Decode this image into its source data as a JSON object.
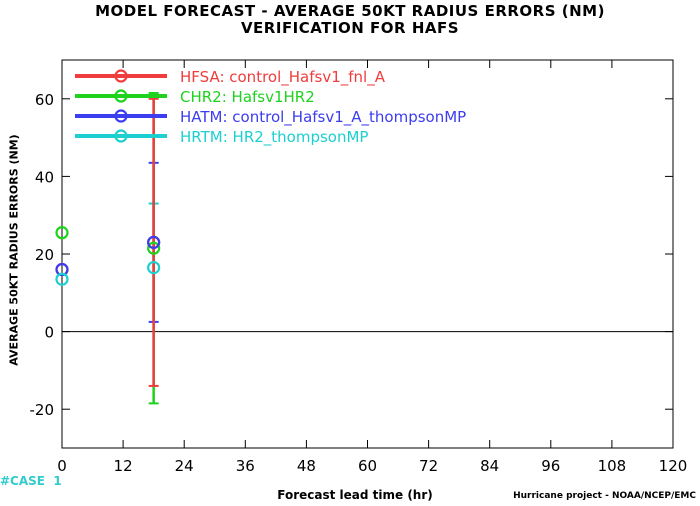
{
  "title_line1": "MODEL FORECAST - AVERAGE 50KT RADIUS ERRORS (NM)",
  "title_line2": "VERIFICATION FOR HAFS",
  "case_label": "#CASE",
  "case_count": "1",
  "credit": "Hurricane project - NOAA/NCEP/EMC",
  "colors": {
    "case": "#33cccc",
    "zero_line": "#000000"
  },
  "chart_data": {
    "type": "line",
    "title": "MODEL FORECAST - AVERAGE 50KT RADIUS ERRORS (NM)",
    "subtitle": "VERIFICATION FOR HAFS",
    "xlabel": "Forecast lead time (hr)",
    "ylabel": "AVERAGE 50KT RADIUS ERRORS (NM)",
    "xlim": [
      0,
      120
    ],
    "ylim": [
      -30,
      70
    ],
    "xticks": [
      0,
      12,
      24,
      36,
      48,
      60,
      72,
      84,
      96,
      108,
      120
    ],
    "yticks": [
      -20,
      0,
      20,
      40,
      60
    ],
    "grid": false,
    "legend_position": "top-left",
    "series": [
      {
        "name": "HFSA:  control_Hafsv1_fnl_A",
        "color": "#f03c3c",
        "x": [
          0,
          18
        ],
        "y": [
          16,
          23
        ],
        "err_low": [
          null,
          -14
        ],
        "err_high": [
          null,
          60
        ]
      },
      {
        "name": "CHR2:  Hafsv1HR2",
        "color": "#1ed21e",
        "x": [
          0,
          18
        ],
        "y": [
          25.5,
          21.5
        ],
        "err_low": [
          null,
          -18.5
        ],
        "err_high": [
          null,
          61.5
        ]
      },
      {
        "name": "HATM:  control_Hafsv1_A_thompsonMP",
        "color": "#3c3cf0",
        "x": [
          0,
          18
        ],
        "y": [
          16,
          23
        ],
        "err_low": [
          null,
          2.5
        ],
        "err_high": [
          null,
          43.5
        ]
      },
      {
        "name": "HRTM:  HR2_thompsonMP",
        "color": "#1ecfcf",
        "x": [
          0,
          18
        ],
        "y": [
          13.5,
          16.5
        ],
        "err_low": [
          null,
          null
        ],
        "err_high": [
          null,
          33
        ]
      }
    ]
  }
}
